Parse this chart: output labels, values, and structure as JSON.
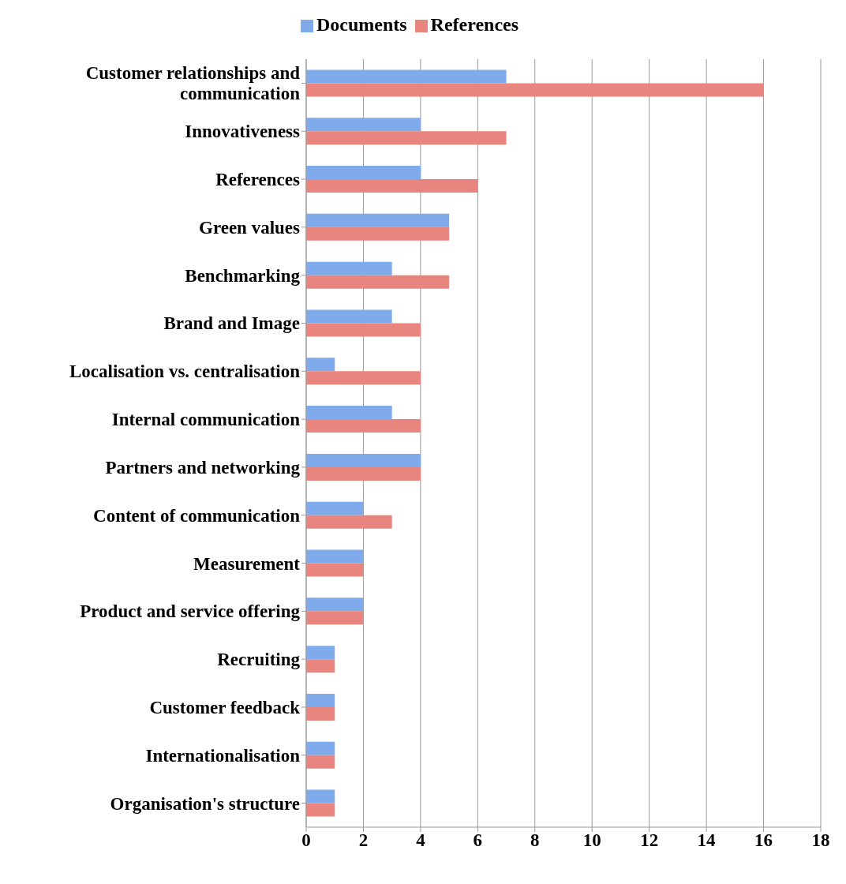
{
  "chart_data": {
    "type": "bar",
    "orientation": "horizontal",
    "categories": [
      "Customer relationships and communication",
      "Innovativeness",
      "References",
      "Green values",
      "Benchmarking",
      "Brand and Image",
      "Localisation vs. centralisation",
      "Internal communication",
      "Partners and networking",
      "Content of communication",
      "Measurement",
      "Product and service offering",
      "Recruiting",
      "Customer feedback",
      "Internationalisation",
      "Organisation's structure"
    ],
    "series": [
      {
        "name": "Documents",
        "color": "#7faaeb",
        "values": [
          7,
          4,
          4,
          5,
          3,
          3,
          1,
          3,
          4,
          2,
          2,
          2,
          1,
          1,
          1,
          1
        ]
      },
      {
        "name": "References",
        "color": "#e8857f",
        "values": [
          16,
          7,
          6,
          5,
          5,
          4,
          4,
          4,
          4,
          3,
          2,
          2,
          1,
          1,
          1,
          1
        ]
      }
    ],
    "xlim": [
      0,
      18
    ],
    "xticks": [
      0,
      2,
      4,
      6,
      8,
      10,
      12,
      14,
      16,
      18
    ],
    "grid": "x",
    "legend": "top"
  }
}
